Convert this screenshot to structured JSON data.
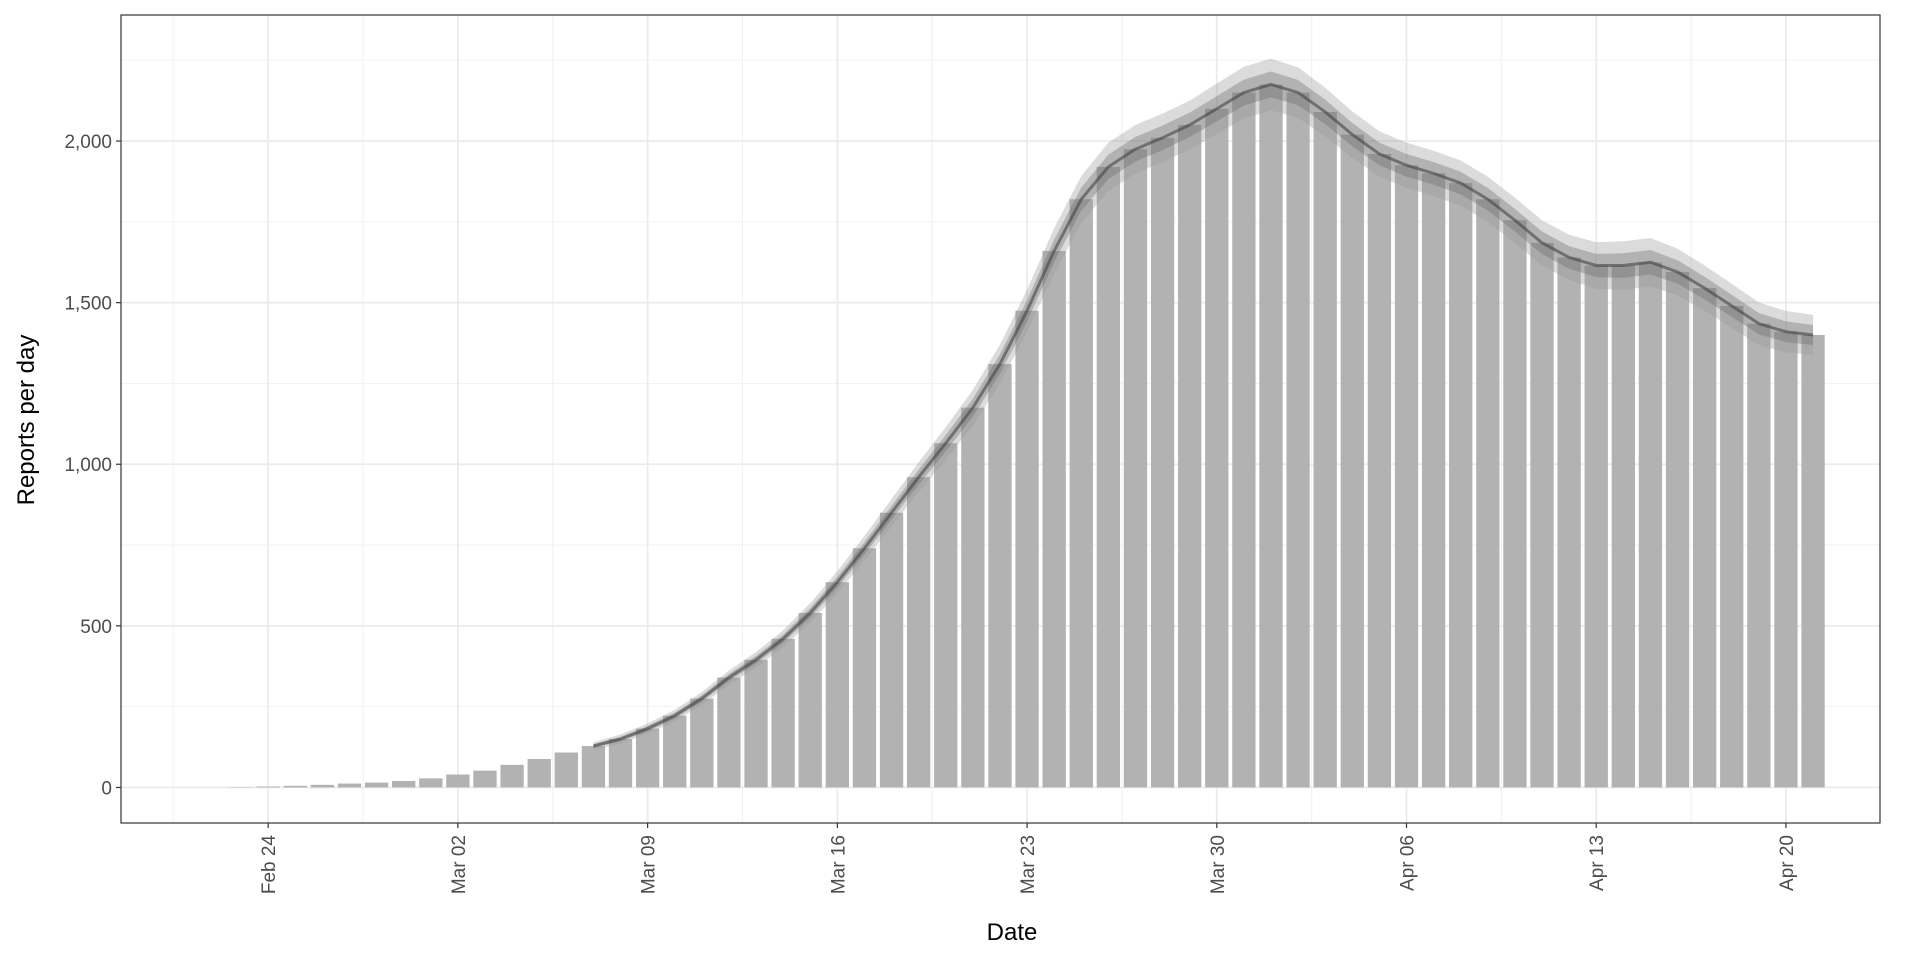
{
  "chart_data": {
    "type": "bar",
    "x_label": "Date",
    "y_label": "Reports per day",
    "color": "#b2b2b2",
    "categories": [
      null,
      null,
      "Feb 24",
      null,
      null,
      null,
      null,
      null,
      null,
      "Mar 02",
      null,
      null,
      null,
      null,
      null,
      null,
      "Mar 09",
      null,
      null,
      null,
      null,
      null,
      null,
      "Mar 16",
      null,
      null,
      null,
      null,
      null,
      null,
      "Mar 23",
      null,
      null,
      null,
      null,
      null,
      null,
      "Mar 30",
      null,
      null,
      null,
      null,
      null,
      null,
      "Apr 06",
      null,
      null,
      null,
      null,
      null,
      null,
      "Apr 13",
      null,
      null,
      null,
      null,
      null,
      null,
      "Apr 20",
      null
    ],
    "values": [
      0,
      1,
      3,
      5,
      8,
      12,
      15,
      20,
      28,
      40,
      52,
      70,
      88,
      108,
      128,
      150,
      182,
      222,
      275,
      340,
      395,
      460,
      540,
      635,
      740,
      850,
      960,
      1065,
      1175,
      1310,
      1475,
      1660,
      1820,
      1920,
      1975,
      2010,
      2050,
      2100,
      2150,
      2175,
      2150,
      2090,
      2020,
      1960,
      1925,
      1900,
      1870,
      1820,
      1755,
      1685,
      1640,
      1615,
      1615,
      1625,
      1595,
      1545,
      1490,
      1435,
      1410,
      1400
    ],
    "median": {
      "color": "#444444",
      "values": [
        null,
        null,
        null,
        null,
        null,
        null,
        null,
        null,
        null,
        null,
        null,
        null,
        null,
        null,
        128,
        150,
        182,
        222,
        275,
        340,
        395,
        460,
        540,
        635,
        740,
        850,
        960,
        1065,
        1175,
        1310,
        1475,
        1660,
        1820,
        1920,
        1975,
        2010,
        2050,
        2100,
        2150,
        2175,
        2150,
        2090,
        2020,
        1960,
        1925,
        1900,
        1870,
        1820,
        1755,
        1685,
        1640,
        1615,
        1615,
        1625,
        1595,
        1545,
        1490,
        1435,
        1410,
        1400
      ]
    },
    "ribbons": [
      {
        "color": "#999999",
        "lower": [
          null,
          null,
          null,
          null,
          null,
          null,
          null,
          null,
          null,
          null,
          null,
          null,
          null,
          null,
          116,
          136,
          166,
          204,
          255,
          318,
          371,
          434,
          510,
          601,
          702,
          808,
          914,
          1015,
          1120,
          1250,
          1410,
          1590,
          1748,
          1845,
          1900,
          1935,
          1975,
          2022,
          2070,
          2095,
          2072,
          2015,
          1948,
          1890,
          1855,
          1830,
          1800,
          1750,
          1685,
          1615,
          1570,
          1543,
          1540,
          1550,
          1523,
          1475,
          1422,
          1369,
          1346,
          1338
        ],
        "upper": [
          null,
          null,
          null,
          null,
          null,
          null,
          null,
          null,
          null,
          null,
          null,
          null,
          null,
          null,
          140,
          164,
          198,
          240,
          295,
          362,
          419,
          486,
          570,
          669,
          778,
          892,
          1006,
          1115,
          1230,
          1370,
          1540,
          1730,
          1892,
          1995,
          2050,
          2085,
          2125,
          2178,
          2230,
          2255,
          2228,
          2165,
          2092,
          2030,
          1995,
          1970,
          1940,
          1890,
          1825,
          1755,
          1710,
          1687,
          1690,
          1700,
          1667,
          1615,
          1558,
          1501,
          1474,
          1462
        ]
      },
      {
        "color": "#666666",
        "lower": [
          null,
          null,
          null,
          null,
          null,
          null,
          null,
          null,
          null,
          null,
          null,
          null,
          null,
          null,
          122,
          143,
          174,
          213,
          265,
          329,
          383,
          447,
          525,
          618,
          721,
          829,
          937,
          1040,
          1147,
          1280,
          1442,
          1625,
          1785,
          1882,
          1937,
          1972,
          2012,
          2061,
          2110,
          2135,
          2111,
          2052,
          1984,
          1925,
          1890,
          1865,
          1835,
          1785,
          1720,
          1650,
          1605,
          1579,
          1577,
          1587,
          1559,
          1510,
          1456,
          1402,
          1378,
          1369
        ],
        "upper": [
          null,
          null,
          null,
          null,
          null,
          null,
          null,
          null,
          null,
          null,
          null,
          null,
          null,
          null,
          134,
          157,
          190,
          231,
          285,
          351,
          407,
          473,
          555,
          652,
          759,
          871,
          983,
          1090,
          1203,
          1340,
          1508,
          1695,
          1856,
          1958,
          2013,
          2048,
          2088,
          2139,
          2190,
          2215,
          2189,
          2128,
          2056,
          1995,
          1960,
          1935,
          1905,
          1855,
          1790,
          1720,
          1675,
          1651,
          1653,
          1663,
          1631,
          1580,
          1524,
          1468,
          1442,
          1431
        ]
      }
    ],
    "ylim": [
      -110,
      2390
    ],
    "yticks": [
      0,
      500,
      {
        "value": 1000,
        "label": "1,000"
      },
      {
        "value": 1500,
        "label": "1,500"
      },
      {
        "value": 2000,
        "label": "2,000"
      }
    ],
    "minor_yticks": [
      250,
      750,
      1250,
      1750,
      2250
    ],
    "grid": true
  }
}
